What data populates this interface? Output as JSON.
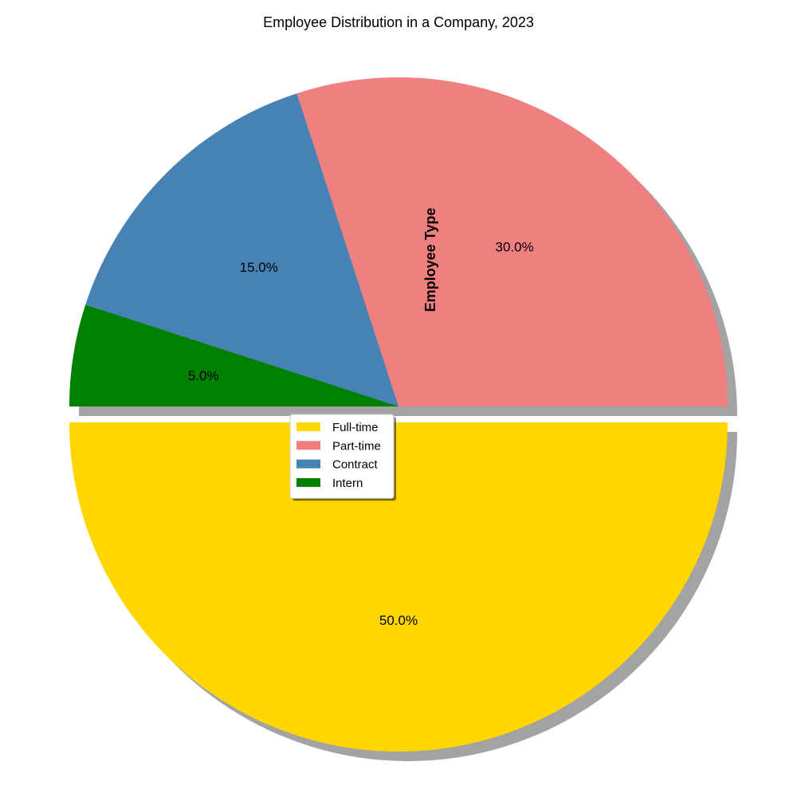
{
  "chart_data": {
    "type": "pie",
    "title": "Employee Distribution in a Company, 2023",
    "ylabel": "Employee Type",
    "categories": [
      "Full-time",
      "Part-time",
      "Contract",
      "Intern"
    ],
    "values": [
      50,
      30,
      15,
      5
    ],
    "value_labels": [
      "50.0%",
      "30.0%",
      "15.0%",
      "5.0%"
    ],
    "colors": [
      "#FFD700",
      "#F08080",
      "#4682B4",
      "#008000"
    ],
    "exploded": [
      true,
      false,
      false,
      false
    ],
    "shadow": true,
    "start_angle_deg": 180,
    "legend": {
      "placement": "center"
    }
  }
}
